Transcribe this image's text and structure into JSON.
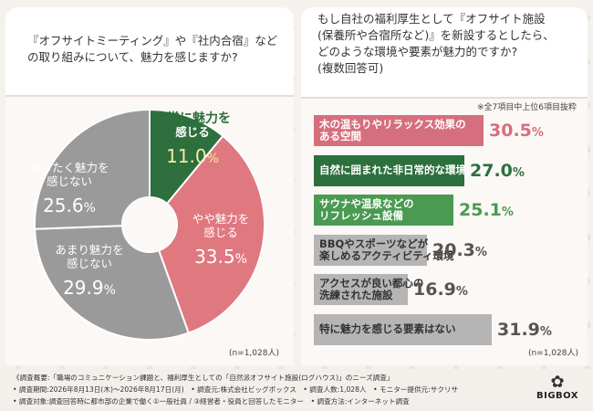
{
  "left": {
    "question": "『オフサイトミーティング』や『社内合宿』などの取り組みについて、魅力を感じますか?",
    "n_note": "(n=1,028人)"
  },
  "right": {
    "question_lines": [
      "もし自社の福利厚生として『オフサイト施設",
      "(保養所や合宿所など)』を新設するとしたら、",
      "どのような環境や要素が魅力的ですか?",
      "(複数回答可)"
    ],
    "subnote": "※全7項目中上位6項目抜粋",
    "n_note": "(n=1,028人)"
  },
  "chart_data": [
    {
      "type": "pie",
      "categories": [
        "非常に魅力を感じる",
        "やや魅力を感じる",
        "あまり魅力を感じない",
        "まったく魅力を感じない"
      ],
      "values": [
        11.0,
        33.5,
        29.9,
        25.6
      ],
      "labels": [
        {
          "lines": [
            "非常に魅力を",
            "感じる"
          ],
          "value": "11.0",
          "unit": "%"
        },
        {
          "lines": [
            "やや魅力を",
            "感じる"
          ],
          "value": "33.5",
          "unit": "%"
        },
        {
          "lines": [
            "あまり魅力を",
            "感じない"
          ],
          "value": "29.9",
          "unit": "%"
        },
        {
          "lines": [
            "まったく魅力を",
            "感じない"
          ],
          "value": "25.6",
          "unit": "%"
        }
      ],
      "colors": [
        "#2e6f3e",
        "#e07880",
        "#9a9a9a",
        "#9a9a9a"
      ]
    },
    {
      "type": "bar",
      "orientation": "horizontal",
      "categories": [
        "木の温もりやリラックス効果のある空間",
        "自然に囲まれた非日常的な環境",
        "サウナや温泉などのリフレッシュ設備",
        "BBQやスポーツなどが楽しめるアクティビティ環境",
        "アクセスが良い都心の洗練された施設",
        "特に魅力を感じる要素はない"
      ],
      "label_lines": [
        [
          "木の温もりやリラックス効果の",
          "ある空間"
        ],
        [
          "自然に囲まれた非日常的な環境"
        ],
        [
          "サウナや温泉などの",
          "リフレッシュ設備"
        ],
        [
          "BBQやスポーツなどが",
          "楽しめるアクティビティ環境"
        ],
        [
          "アクセスが良い都心の",
          "洗練された施設"
        ],
        [
          "特に魅力を感じる要素はない"
        ]
      ],
      "values": [
        30.5,
        27.0,
        25.1,
        20.3,
        16.9,
        31.9
      ],
      "value_text": [
        "30.5",
        "27.0",
        "25.1",
        "20.3",
        "16.9",
        "31.9"
      ],
      "unit": "%",
      "colors": [
        "#d66f7d",
        "#2e6f3e",
        "#4a9a52",
        "#b5b5b5",
        "#b5b5b5",
        "#b5b5b5"
      ],
      "text_colors": [
        "#ffffff",
        "#ffffff",
        "#ffffff",
        "#333333",
        "#333333",
        "#333333"
      ],
      "pct_colors": [
        "#d66f7d",
        "#2e6f3e",
        "#4a9a52",
        "#555555",
        "#555555",
        "#555555"
      ]
    }
  ],
  "footer": {
    "lines": [
      "《調査概要:「職場のコミュニケーション課題と、福利厚生としての「自然派オフサイト施設(ログハウス)」のニーズ調査」",
      "• 調査期間:2026年8月13日(木)〜2026年8月17日(月)　• 調査元:株式会社ビッグボックス　• 調査人数:1,028人　• モニター提供元:サクリサ",
      "• 調査対象:調査回答時に都市部の企業で働く①一般社員 / ③経営者・役員と回答したモニター　• 調査方法:インターネット調査"
    ],
    "brand": "BIGBOX"
  }
}
